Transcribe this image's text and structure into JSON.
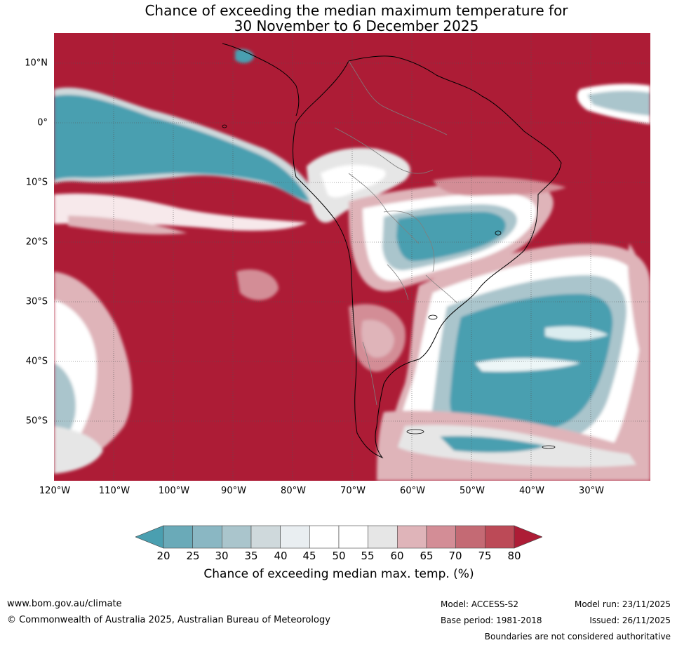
{
  "title": {
    "line1": "Chance of exceeding the median maximum temperature for",
    "line2": "30 November to 6 December 2025"
  },
  "map": {
    "lat_labels": [
      "10°N",
      "0°",
      "10°S",
      "20°S",
      "30°S",
      "40°S",
      "50°S"
    ],
    "lon_labels": [
      "120°W",
      "110°W",
      "100°W",
      "90°W",
      "80°W",
      "70°W",
      "60°W",
      "50°W",
      "40°W",
      "30°W"
    ],
    "background_color": "#ad1c36",
    "coast_color": "#000000",
    "border_color": "#7f7f7f"
  },
  "colorbar": {
    "ticks": [
      "20",
      "25",
      "30",
      "35",
      "40",
      "45",
      "50",
      "55",
      "60",
      "65",
      "70",
      "75",
      "80"
    ],
    "colors": [
      "#4a9fb0",
      "#6aaab8",
      "#8ab7c3",
      "#aac5cc",
      "#cfd9dc",
      "#e9eef1",
      "#ffffff",
      "#ffffff",
      "#e6e6e6",
      "#dfb4b9",
      "#d38d96",
      "#c46a74",
      "#bc4a57",
      "#ad1c36"
    ],
    "label": "Chance of exceeding median max. temp. (%)"
  },
  "footer": {
    "website": "www.bom.gov.au/climate",
    "copyright": "© Commonwealth of Australia 2025, Australian Bureau of Meteorology",
    "model": "Model: ACCESS-S2",
    "base_period": "Base period: 1981-2018",
    "model_run": "Model run: 23/11/2025",
    "issued": "Issued: 26/11/2025",
    "disclaimer": "Boundaries are not considered authoritative"
  }
}
